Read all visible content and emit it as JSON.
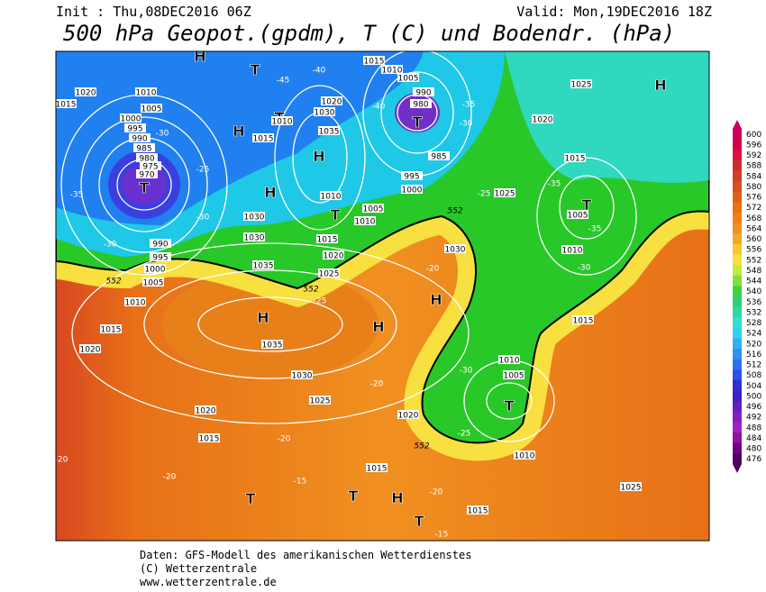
{
  "header": {
    "init": "Init : Thu,08DEC2016 06Z",
    "valid": "Valid: Mon,19DEC2016 18Z",
    "title": "500 hPa Geopot.(gpdm), T (C) und Bodendr. (hPa)"
  },
  "map": {
    "labels": [
      "T",
      "T",
      "T",
      "T",
      "T",
      "T",
      "T",
      "T",
      "T",
      "T",
      "H",
      "H",
      "H",
      "H",
      "H",
      "H",
      "H",
      "H",
      "H",
      "1020",
      "1015",
      "1010",
      "1005",
      "1000",
      "995",
      "990",
      "985",
      "980",
      "975",
      "970",
      "990",
      "995",
      "1000",
      "1005",
      "1010",
      "1015",
      "1020",
      "1030",
      "1030",
      "1035",
      "1035",
      "1030",
      "1025",
      "1020",
      "1015",
      "1015",
      "1020",
      "1010",
      "1015",
      "1025",
      "1015",
      "1010",
      "1005",
      "1020",
      "1025",
      "1015",
      "1005",
      "1010",
      "1025",
      "1000",
      "995",
      "985",
      "980",
      "990",
      "1005",
      "1010",
      "1015",
      "1030",
      "1035",
      "1020",
      "1010",
      "1005",
      "1010",
      "1015",
      "1020",
      "1025",
      "1030",
      "1015",
      "1010",
      "-35",
      "-30",
      "-30",
      "-25",
      "-30",
      "-25",
      "-20",
      "-20",
      "-20",
      "-20",
      "-15",
      "-20",
      "-15",
      "-25",
      "-30",
      "-25",
      "-30",
      "-35",
      "-35",
      "-30",
      "-35",
      "-40",
      "-45",
      "-40",
      "-20",
      "552",
      "552",
      "552",
      "552"
    ]
  },
  "colorbar": {
    "values": [
      600,
      596,
      592,
      588,
      584,
      580,
      576,
      572,
      568,
      564,
      560,
      556,
      552,
      548,
      544,
      540,
      536,
      532,
      528,
      524,
      520,
      516,
      512,
      508,
      504,
      500,
      496,
      492,
      488,
      484,
      480,
      476
    ],
    "colors": [
      "#c8005a",
      "#d4004a",
      "#e0103c",
      "#c83030",
      "#d04028",
      "#d85020",
      "#e06018",
      "#e87010",
      "#f08010",
      "#f09020",
      "#f0a828",
      "#f8c830",
      "#f8e040",
      "#c8e840",
      "#80e040",
      "#40d040",
      "#30d070",
      "#30d8a0",
      "#30e0d0",
      "#30d0f0",
      "#30b0f0",
      "#3090f0",
      "#3070f0",
      "#3050e8",
      "#3030d0",
      "#4020c0",
      "#6020c0",
      "#8020c0",
      "#a020c0",
      "#9010a0",
      "#700080",
      "#500060"
    ]
  },
  "footer": {
    "line1": "Daten: GFS-Modell des amerikanischen Wetterdienstes",
    "line2": "(C) Wetterzentrale",
    "line3": "www.wetterzentrale.de"
  }
}
